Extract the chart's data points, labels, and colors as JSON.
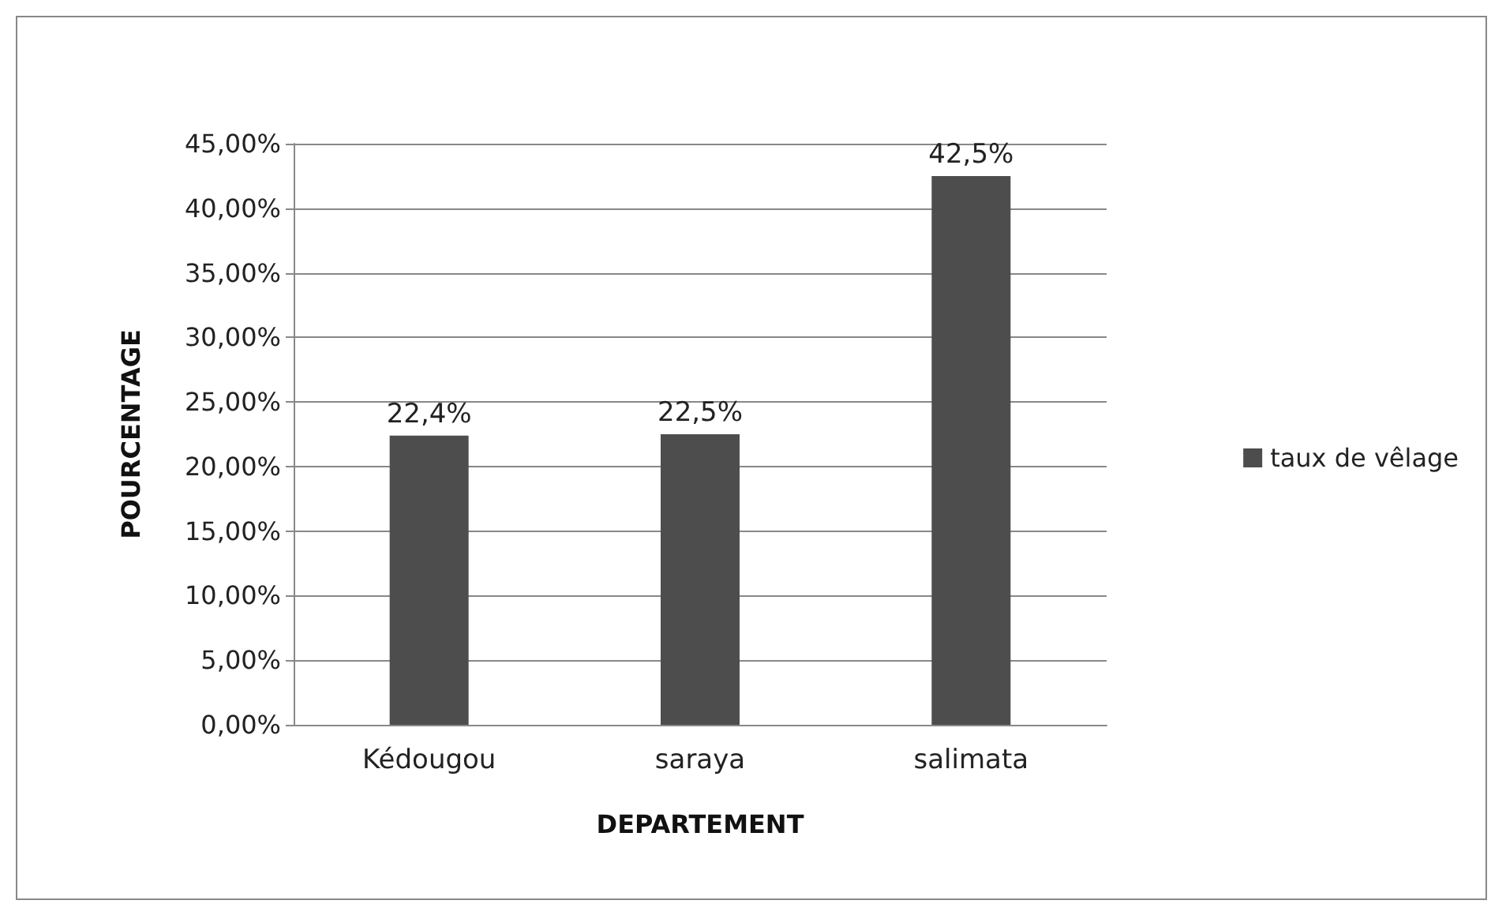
{
  "chart_data": {
    "type": "bar",
    "xlabel": "DEPARTEMENT",
    "ylabel": "POURCENTAGE",
    "categories": [
      "Kédougou",
      "saraya",
      "salimata"
    ],
    "series": [
      {
        "name": "taux de vêlage",
        "color": "#4d4d4d",
        "values": [
          22.4,
          22.5,
          42.5
        ],
        "value_labels": [
          "22,4%",
          "22,5%",
          "42,5%"
        ]
      }
    ],
    "ylim": [
      0,
      45
    ],
    "yticks": [
      {
        "value": 0,
        "label": "0,00%"
      },
      {
        "value": 5,
        "label": "5,00%"
      },
      {
        "value": 10,
        "label": "10,00%"
      },
      {
        "value": 15,
        "label": "15,00%"
      },
      {
        "value": 20,
        "label": "20,00%"
      },
      {
        "value": 25,
        "label": "25,00%"
      },
      {
        "value": 30,
        "label": "30,00%"
      },
      {
        "value": 35,
        "label": "35,00%"
      },
      {
        "value": 40,
        "label": "40,00%"
      },
      {
        "value": 45,
        "label": "45,00%"
      }
    ],
    "grid": "y",
    "legend": "right"
  }
}
